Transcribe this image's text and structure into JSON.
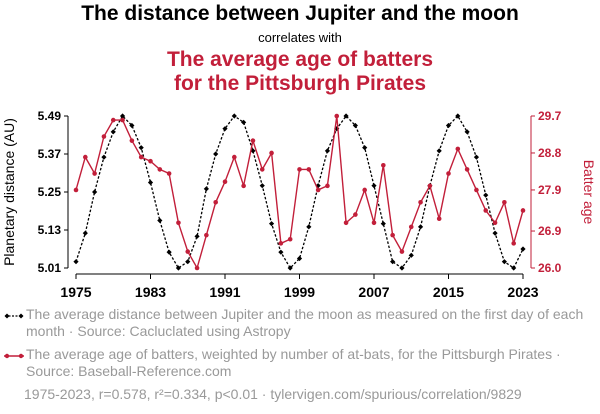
{
  "header": {
    "title": "The distance between Jupiter and the moon",
    "connector": "correlates with",
    "subtitle_line1": "The average age of batters",
    "subtitle_line2": "for the Pittsburgh Pirates"
  },
  "legend": {
    "series1_text": "The average distance between Jupiter and the moon as measured on the first day of each month · Source: Cacluclated using Astropy",
    "series2_text": "The average age of batters, weighted by number of at-bats, for the Pittsburgh Pirates · Source: Baseball-Reference.com"
  },
  "footer": {
    "text": "1975-2023, r=0.578, r²=0.334, p<0.01 · tylervigen.com/spurious/correlation/9829"
  },
  "colors": {
    "series1": "#000000",
    "series2": "#c21f3a"
  },
  "chart_data": {
    "type": "line",
    "x": [
      1975,
      1976,
      1977,
      1978,
      1979,
      1980,
      1981,
      1982,
      1983,
      1984,
      1985,
      1986,
      1987,
      1988,
      1989,
      1990,
      1991,
      1992,
      1993,
      1994,
      1995,
      1996,
      1997,
      1998,
      1999,
      2000,
      2001,
      2002,
      2003,
      2004,
      2005,
      2006,
      2007,
      2008,
      2009,
      2010,
      2011,
      2012,
      2013,
      2014,
      2015,
      2016,
      2017,
      2018,
      2019,
      2020,
      2021,
      2022,
      2023
    ],
    "xlim": [
      1975,
      2023
    ],
    "x_ticks": [
      "1975",
      "1983",
      "1991",
      "1999",
      "2007",
      "2015",
      "2023"
    ],
    "series": [
      {
        "axis": "left",
        "style": "dashed-diamond",
        "values": [
          5.03,
          5.12,
          5.25,
          5.36,
          5.44,
          5.49,
          5.46,
          5.39,
          5.28,
          5.16,
          5.06,
          5.01,
          5.03,
          5.11,
          5.26,
          5.37,
          5.45,
          5.49,
          5.47,
          5.38,
          5.27,
          5.15,
          5.06,
          5.01,
          5.04,
          5.14,
          5.27,
          5.38,
          5.45,
          5.49,
          5.46,
          5.39,
          5.27,
          5.15,
          5.03,
          5.01,
          5.05,
          5.14,
          5.27,
          5.38,
          5.46,
          5.49,
          5.44,
          5.36,
          5.24,
          5.12,
          5.03,
          5.01,
          5.07
        ]
      },
      {
        "axis": "right",
        "style": "solid-dot",
        "values": [
          27.9,
          28.7,
          28.3,
          29.2,
          29.6,
          29.6,
          29.1,
          28.7,
          28.6,
          28.4,
          28.3,
          27.1,
          26.4,
          26.0,
          26.8,
          27.6,
          28.1,
          28.7,
          28.0,
          29.1,
          28.4,
          28.8,
          26.6,
          26.7,
          28.4,
          28.4,
          27.9,
          28.0,
          29.7,
          27.1,
          27.3,
          27.9,
          27.1,
          28.5,
          26.8,
          26.4,
          27.0,
          27.6,
          28.0,
          27.2,
          28.3,
          28.9,
          28.4,
          27.9,
          27.4,
          27.1,
          27.6,
          26.6,
          27.4
        ]
      }
    ],
    "left_axis": {
      "label": "Planetary distance (AU)",
      "ylim": [
        5.01,
        5.49
      ],
      "ticks": [
        "5.01",
        "5.13",
        "5.25",
        "5.37",
        "5.49"
      ]
    },
    "right_axis": {
      "label": "Batter age",
      "ylim": [
        26.0,
        29.7
      ],
      "ticks": [
        "26.0",
        "26.9",
        "27.9",
        "28.8",
        "29.7"
      ]
    }
  }
}
